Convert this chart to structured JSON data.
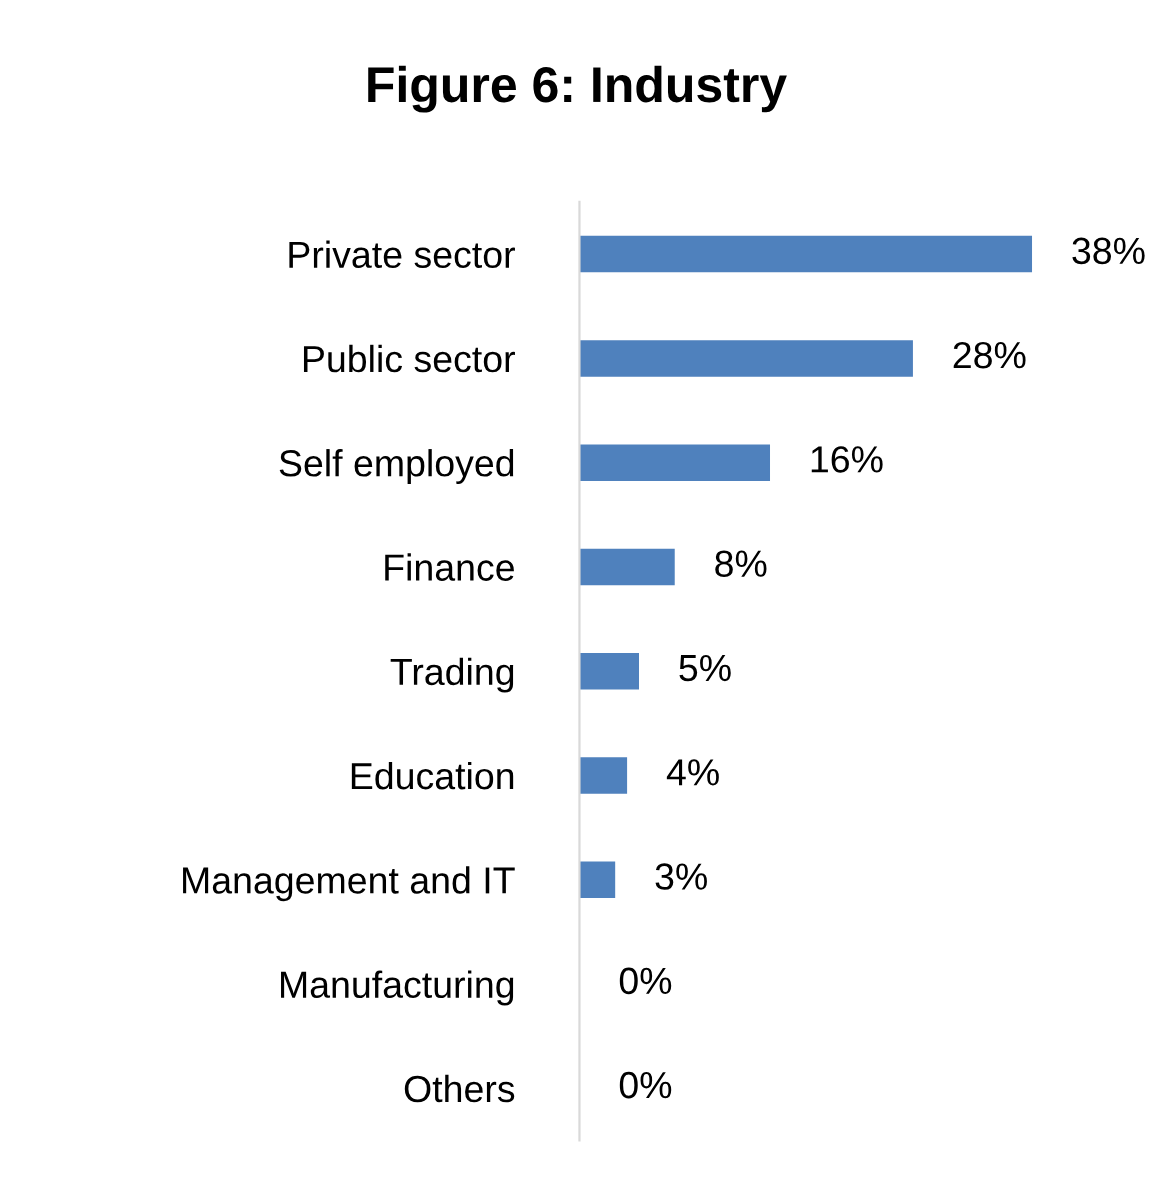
{
  "chart_data": {
    "type": "bar",
    "orientation": "horizontal",
    "title": "Figure 6: Industry",
    "categories": [
      "Private sector",
      "Public sector",
      "Self employed",
      "Finance",
      "Trading",
      "Education",
      "Management and IT",
      "Manufacturing",
      "Others"
    ],
    "values": [
      38,
      28,
      16,
      8,
      5,
      4,
      3,
      0,
      0
    ],
    "value_labels": [
      "38%",
      "28%",
      "16%",
      "8%",
      "5%",
      "4%",
      "3%",
      "0%",
      "0%"
    ],
    "color": "#4f81bd",
    "grid": false,
    "legend": false
  }
}
